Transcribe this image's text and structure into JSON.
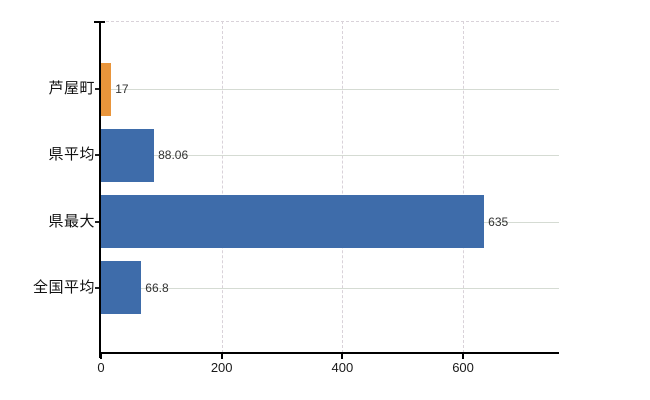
{
  "chart_data": {
    "type": "bar",
    "orientation": "horizontal",
    "categories": [
      "芦屋町",
      "県平均",
      "県最大",
      "全国平均"
    ],
    "values": [
      17,
      88.06,
      635,
      66.8
    ],
    "value_labels": [
      "17",
      "88.06",
      "635",
      "66.8"
    ],
    "bar_colors": [
      "#E9953B",
      "#3E6CAA",
      "#3E6CAA",
      "#3E6CAA"
    ],
    "x_ticks": [
      0,
      200,
      400,
      600
    ],
    "x_tick_labels": [
      "0",
      "200",
      "400",
      "600"
    ],
    "xlim": [
      0,
      760
    ],
    "grid": true,
    "legend": "none",
    "colors": {
      "highlight_bar": "#E9953B",
      "default_bar": "#3E6CAA",
      "gridline_horizontal": "#D5DBD3",
      "gridline_vertical": "#D9D2D9",
      "axis": "#000000",
      "category_label": "#111111",
      "value_label": "#333333",
      "tick_label": "#1A1A1A",
      "background": "#FFFFFF"
    }
  }
}
